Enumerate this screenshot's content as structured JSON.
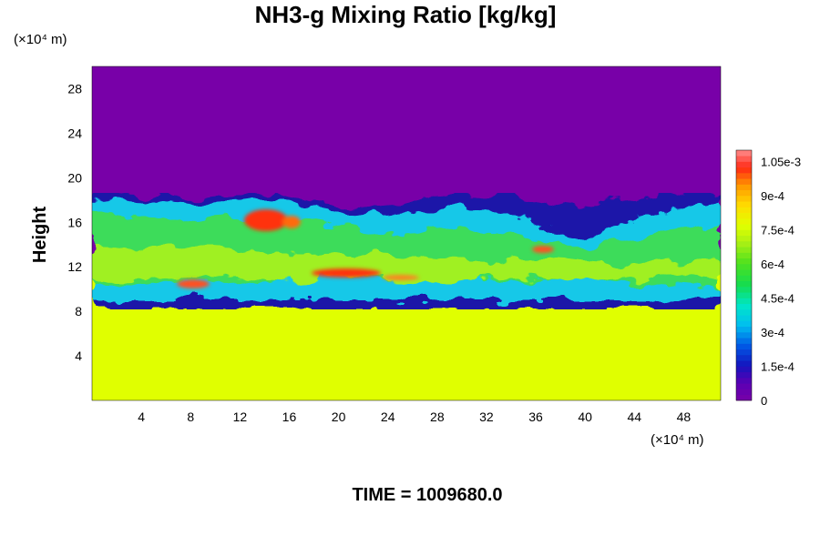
{
  "chart_data": {
    "type": "heatmap",
    "title": "NH3-g Mixing Ratio [kg/kg]",
    "ylabel": "Height",
    "xlabel": "",
    "x_unit_label": "(×10⁴ m)",
    "y_unit_label": "(×10⁴ m)",
    "x_ticks": [
      4,
      8,
      12,
      16,
      20,
      24,
      28,
      32,
      36,
      40,
      44,
      48
    ],
    "y_ticks": [
      4,
      8,
      12,
      16,
      20,
      24,
      28
    ],
    "xlim": [
      0,
      51
    ],
    "ylim": [
      0,
      30
    ],
    "colorbar": {
      "min": 0,
      "max": 0.0011,
      "tick_labels": [
        "0",
        "1.5e-4",
        "3e-4",
        "4.5e-4",
        "6e-4",
        "7.5e-4",
        "9e-4",
        "1.05e-3"
      ],
      "tick_values": [
        0,
        0.00015,
        0.0003,
        0.00045,
        0.0006,
        0.00075,
        0.0009,
        0.00105
      ]
    },
    "colors": {
      "background_value_color": "#7800a8",
      "lower_layer_color": "#e0ff00"
    },
    "field_summary": {
      "upper_value": 0,
      "lower_value": 0.00078,
      "interface_height": 17.5,
      "well_mixed_top": 10
    },
    "time_label": "TIME = 1009680.0"
  }
}
